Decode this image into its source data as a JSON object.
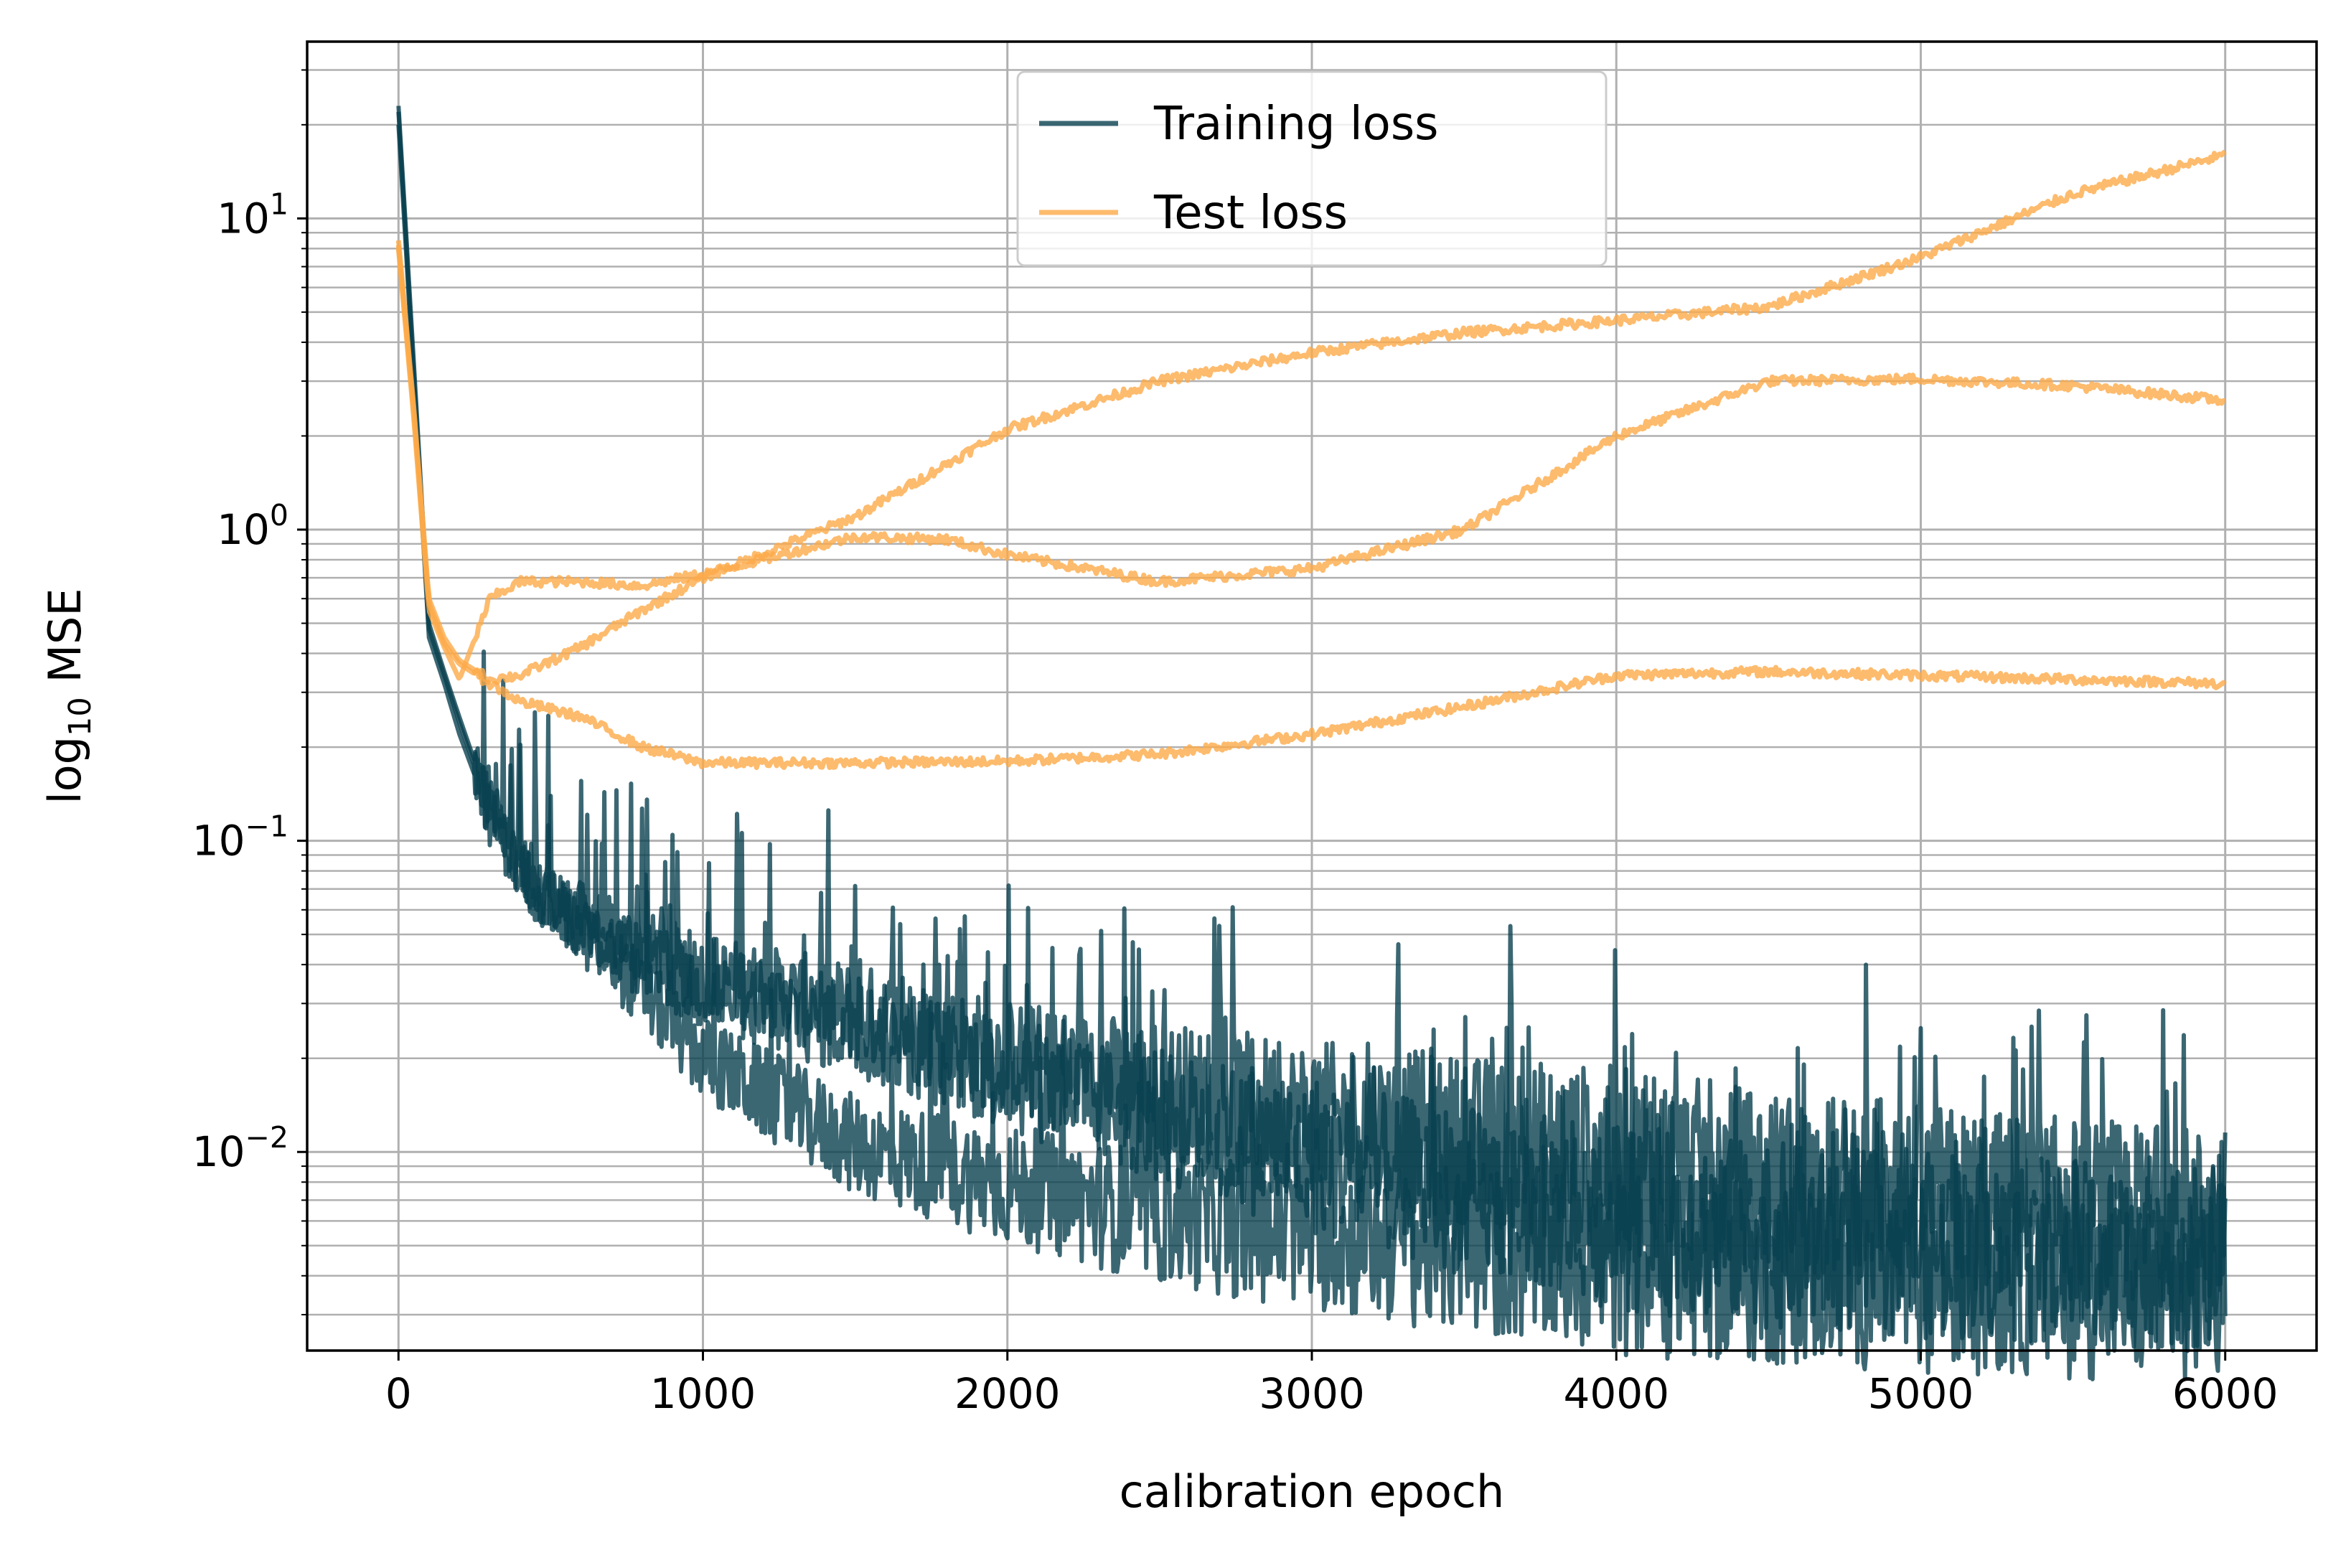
{
  "chart_data": {
    "type": "line",
    "title": "",
    "xlabel": "calibration epoch",
    "ylabel": {
      "prefix": "log",
      "subscript": "10",
      "suffix": " MSE"
    },
    "xlim": [
      -300,
      6300
    ],
    "ylim": [
      0.0023,
      37
    ],
    "yscale": "log",
    "grid": {
      "major": true,
      "minor_y": true
    },
    "legend_placement": "upper-center",
    "x_ticks": [
      {
        "value": 0,
        "label": "0"
      },
      {
        "value": 1000,
        "label": "1000"
      },
      {
        "value": 2000,
        "label": "2000"
      },
      {
        "value": 3000,
        "label": "3000"
      },
      {
        "value": 4000,
        "label": "4000"
      },
      {
        "value": 5000,
        "label": "5000"
      },
      {
        "value": 6000,
        "label": "6000"
      }
    ],
    "y_ticks": [
      {
        "value": 0.01,
        "base": "10",
        "exp": "−2"
      },
      {
        "value": 0.1,
        "base": "10",
        "exp": "−1"
      },
      {
        "value": 1,
        "base": "10",
        "exp": "0"
      },
      {
        "value": 10,
        "base": "10",
        "exp": "1"
      }
    ],
    "series": [
      {
        "name": "Training loss",
        "color": "#0a4150",
        "legend": true,
        "x": [
          0,
          50,
          100,
          150,
          200,
          300,
          400,
          500,
          700,
          1000,
          1500,
          2000,
          2500,
          3000,
          3500,
          4000,
          4500,
          5000,
          5500,
          6000
        ],
        "y": [
          23,
          3.5,
          0.5,
          0.35,
          0.25,
          0.13,
          0.085,
          0.065,
          0.05,
          0.037,
          0.028,
          0.02,
          0.016,
          0.013,
          0.011,
          0.0095,
          0.008,
          0.0072,
          0.0065,
          0.006
        ]
      },
      {
        "name": "Training loss",
        "color": "#0a4150",
        "legend": false,
        "x": [
          0,
          50,
          100,
          150,
          200,
          300,
          400,
          500,
          700,
          1000,
          1500,
          2000,
          2500,
          3000,
          3500,
          4000,
          4500,
          5000,
          5500,
          6000
        ],
        "y": [
          20,
          3.0,
          0.45,
          0.32,
          0.22,
          0.12,
          0.08,
          0.062,
          0.042,
          0.02,
          0.0105,
          0.0078,
          0.0062,
          0.0054,
          0.0048,
          0.0044,
          0.0041,
          0.0039,
          0.0037,
          0.0036
        ]
      },
      {
        "name": "Training loss",
        "color": "#0a4150",
        "legend": false,
        "x": [
          0,
          50,
          100,
          150,
          200,
          300,
          400,
          500,
          700,
          1000,
          1500,
          2000,
          2500,
          3000,
          3500,
          4000,
          4500,
          5000,
          5500,
          6000
        ],
        "y": [
          22,
          3.2,
          0.48,
          0.34,
          0.24,
          0.125,
          0.083,
          0.064,
          0.046,
          0.033,
          0.025,
          0.018,
          0.013,
          0.0095,
          0.0075,
          0.0062,
          0.0054,
          0.005,
          0.0047,
          0.0045
        ]
      },
      {
        "name": "Test loss",
        "color": "#fdaa48",
        "legend": true,
        "x": [
          0,
          50,
          100,
          150,
          200,
          300,
          400,
          600,
          800,
          1000,
          1500,
          2000,
          2500,
          3000,
          3500,
          4000,
          4500,
          5000,
          5500,
          6000
        ],
        "y": [
          8.5,
          2.5,
          0.6,
          0.45,
          0.38,
          0.33,
          0.34,
          0.42,
          0.55,
          0.7,
          1.1,
          2.1,
          3.0,
          3.7,
          4.3,
          4.7,
          5.2,
          7.5,
          12.0,
          16.0
        ]
      },
      {
        "name": "Test loss",
        "color": "#fdaa48",
        "legend": false,
        "x": [
          0,
          50,
          100,
          150,
          200,
          300,
          400,
          600,
          800,
          1000,
          1500,
          1800,
          2000,
          2500,
          3000,
          3500,
          4000,
          4500,
          5000,
          5500,
          6000
        ],
        "y": [
          8.0,
          2.3,
          0.55,
          0.42,
          0.33,
          0.6,
          0.68,
          0.68,
          0.66,
          0.72,
          0.95,
          0.93,
          0.83,
          0.68,
          0.75,
          1.0,
          2.0,
          3.0,
          3.05,
          2.9,
          2.6
        ]
      },
      {
        "name": "Test loss",
        "color": "#fdaa48",
        "legend": false,
        "x": [
          0,
          50,
          100,
          150,
          200,
          300,
          400,
          600,
          800,
          1000,
          1500,
          2000,
          2500,
          3000,
          3500,
          4000,
          4500,
          5000,
          5500,
          6000
        ],
        "y": [
          8.2,
          2.4,
          0.58,
          0.43,
          0.37,
          0.32,
          0.28,
          0.25,
          0.2,
          0.178,
          0.178,
          0.18,
          0.19,
          0.22,
          0.27,
          0.34,
          0.35,
          0.34,
          0.33,
          0.32
        ]
      }
    ]
  }
}
